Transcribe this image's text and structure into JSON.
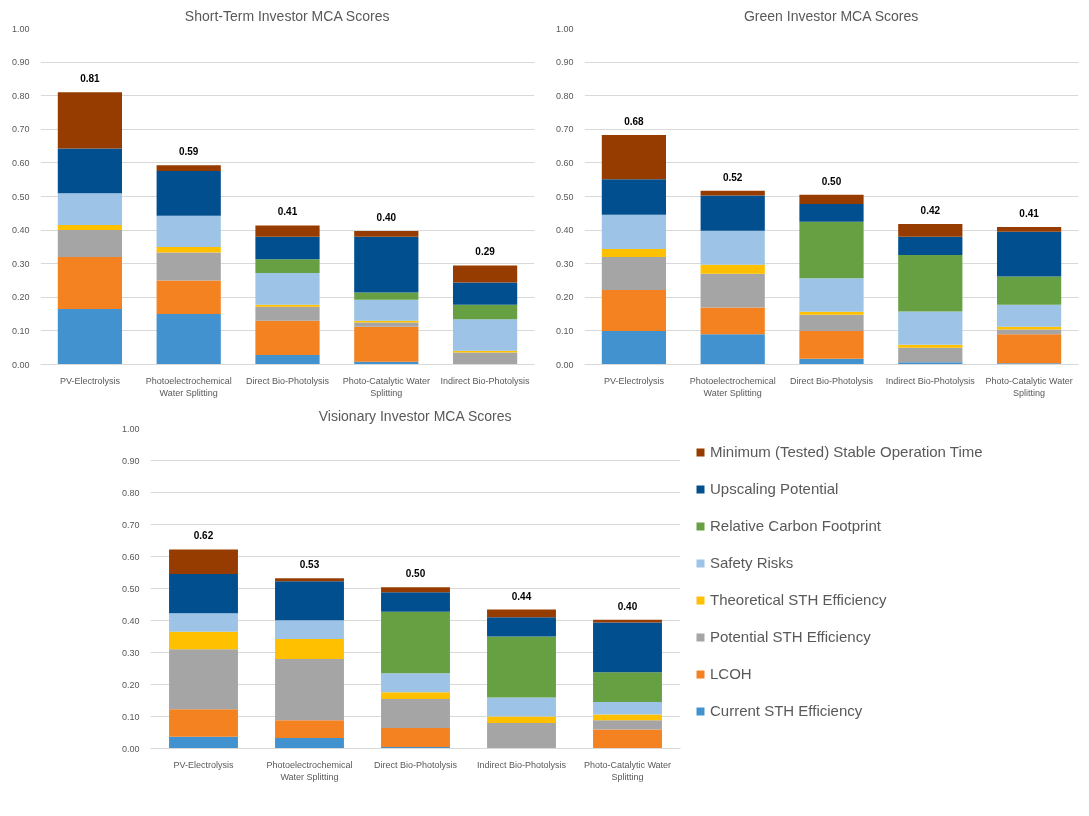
{
  "chart_data": [
    {
      "type": "bar",
      "stacked": true,
      "title": "Short-Term Investor MCA Scores",
      "grid": "y",
      "categories": [
        "PV-Electrolysis",
        "Photoelectrochemical Water Splitting",
        "Direct Bio-Photolysis",
        "Photo-Catalytic Water Splitting",
        "Indirect Bio-Photolysis"
      ],
      "ylim": [
        0,
        1
      ],
      "yticks": [
        {
          "value": 0,
          "label": "0.00"
        },
        {
          "value": 0.1,
          "label": "0.10"
        },
        {
          "value": 0.2,
          "label": "0.20"
        },
        {
          "value": 0.3,
          "label": "0.30"
        },
        {
          "value": 0.4,
          "label": "0.40"
        },
        {
          "value": 0.5,
          "label": "0.50"
        },
        {
          "value": 0.6,
          "label": "0.60"
        },
        {
          "value": 0.7,
          "label": "0.70"
        },
        {
          "value": 0.8,
          "label": "0.80"
        },
        {
          "value": 0.9,
          "label": "0.90"
        },
        {
          "value": 1,
          "label": "1.00"
        }
      ],
      "series": [
        {
          "color": "#4292d0",
          "values": [
            0.165,
            0.15,
            0.028,
            0.008,
            0
          ]
        },
        {
          "color": "#f58220",
          "values": [
            0.155,
            0.1,
            0.102,
            0.104,
            0
          ]
        },
        {
          "color": "#a5a5a5",
          "values": [
            0.08,
            0.083,
            0.042,
            0.013,
            0.036
          ]
        },
        {
          "color": "#ffc000",
          "values": [
            0.015,
            0.017,
            0.006,
            0.005,
            0.005
          ]
        },
        {
          "color": "#9dc3e6",
          "values": [
            0.095,
            0.093,
            0.094,
            0.063,
            0.094
          ]
        },
        {
          "color": "#67a043",
          "values": [
            0,
            0,
            0.041,
            0.021,
            0.043
          ]
        },
        {
          "color": "#024f8f",
          "values": [
            0.133,
            0.133,
            0.067,
            0.166,
            0.066
          ]
        },
        {
          "color": "#963c00",
          "values": [
            0.167,
            0.017,
            0.034,
            0.017,
            0.051
          ]
        }
      ],
      "totals": [
        "0.81",
        "0.59",
        "0.41",
        "0.40",
        "0.29"
      ]
    },
    {
      "type": "bar",
      "stacked": true,
      "title": "Green Investor MCA Scores",
      "grid": "y",
      "categories": [
        "PV-Electrolysis",
        "Photoelectrochemical Water Splitting",
        "Direct Bio-Photolysis",
        "Indirect Bio-Photolysis",
        "Photo-Catalytic Water Splitting"
      ],
      "ylim": [
        0,
        1
      ],
      "yticks": [
        {
          "value": 0,
          "label": "0.00"
        },
        {
          "value": 0.1,
          "label": "0.10"
        },
        {
          "value": 0.2,
          "label": "0.20"
        },
        {
          "value": 0.3,
          "label": "0.30"
        },
        {
          "value": 0.4,
          "label": "0.40"
        },
        {
          "value": 0.5,
          "label": "0.50"
        },
        {
          "value": 0.6,
          "label": "0.60"
        },
        {
          "value": 0.7,
          "label": "0.70"
        },
        {
          "value": 0.8,
          "label": "0.80"
        },
        {
          "value": 0.9,
          "label": "0.90"
        },
        {
          "value": 1,
          "label": "1.00"
        }
      ],
      "series": [
        {
          "color": "#4292d0",
          "values": [
            0.1,
            0.09,
            0.017,
            0.007,
            0.004
          ]
        },
        {
          "color": "#f58220",
          "values": [
            0.122,
            0.08,
            0.083,
            0,
            0.086
          ]
        },
        {
          "color": "#a5a5a5",
          "values": [
            0.098,
            0.1,
            0.048,
            0.043,
            0.014
          ]
        },
        {
          "color": "#ffc000",
          "values": [
            0.024,
            0.027,
            0.009,
            0.009,
            0.008
          ]
        },
        {
          "color": "#9dc3e6",
          "values": [
            0.102,
            0.101,
            0.1,
            0.099,
            0.066
          ]
        },
        {
          "color": "#67a043",
          "values": [
            0,
            0,
            0.168,
            0.168,
            0.084
          ]
        },
        {
          "color": "#024f8f",
          "values": [
            0.105,
            0.105,
            0.053,
            0.054,
            0.133
          ]
        },
        {
          "color": "#963c00",
          "values": [
            0.132,
            0.014,
            0.027,
            0.038,
            0.014
          ]
        }
      ],
      "totals": [
        "0.68",
        "0.52",
        "0.50",
        "0.42",
        "0.41"
      ]
    },
    {
      "type": "bar",
      "stacked": true,
      "title": "Visionary Investor MCA Scores",
      "grid": "y",
      "legend": "right",
      "categories": [
        "PV-Electrolysis",
        "Photoelectrochemical Water Splitting",
        "Direct Bio-Photolysis",
        "Indirect Bio-Photolysis",
        "Photo-Catalytic Water Splitting"
      ],
      "ylim": [
        0,
        1
      ],
      "yticks": [
        {
          "value": 0,
          "label": "0.00"
        },
        {
          "value": 0.1,
          "label": "0.10"
        },
        {
          "value": 0.2,
          "label": "0.20"
        },
        {
          "value": 0.3,
          "label": "0.30"
        },
        {
          "value": 0.4,
          "label": "0.40"
        },
        {
          "value": 0.5,
          "label": "0.50"
        },
        {
          "value": 0.6,
          "label": "0.60"
        },
        {
          "value": 0.7,
          "label": "0.70"
        },
        {
          "value": 0.8,
          "label": "0.80"
        },
        {
          "value": 0.9,
          "label": "0.90"
        },
        {
          "value": 1,
          "label": "1.00"
        }
      ],
      "series": [
        {
          "name": "Current STH Efficiency",
          "color": "#4292d0",
          "values": [
            0.037,
            0.033,
            0.005,
            null,
            0
          ]
        },
        {
          "name": "LCOH",
          "color": "#f58220",
          "values": [
            0.086,
            0.055,
            0.059,
            0,
            0.059
          ]
        },
        {
          "name": "Potential STH Efficiency",
          "color": "#a5a5a5",
          "values": [
            0.187,
            0.192,
            0.091,
            0.08,
            0.029
          ]
        },
        {
          "name": "Theoretical STH Efficiency",
          "color": "#ffc000",
          "values": [
            0.055,
            0.062,
            0.021,
            0.02,
            0.018
          ]
        },
        {
          "name": "Safety Risks",
          "color": "#9dc3e6",
          "values": [
            0.058,
            0.059,
            0.059,
            0.059,
            0.039
          ]
        },
        {
          "name": "Relative Carbon Footprint",
          "color": "#67a043",
          "values": [
            0,
            0,
            0.192,
            0.191,
            0.093
          ]
        },
        {
          "name": "Upscaling Potential",
          "color": "#024f8f",
          "values": [
            0.122,
            0.122,
            0.061,
            0.06,
            0.156
          ]
        },
        {
          "name": "Minimum (Tested) Stable Operation Time",
          "color": "#963c00",
          "values": [
            0.077,
            0.009,
            0.016,
            0.024,
            0.008
          ]
        }
      ],
      "totals": [
        "0.62",
        "0.53",
        "0.50",
        "0.44",
        "0.40"
      ]
    }
  ]
}
